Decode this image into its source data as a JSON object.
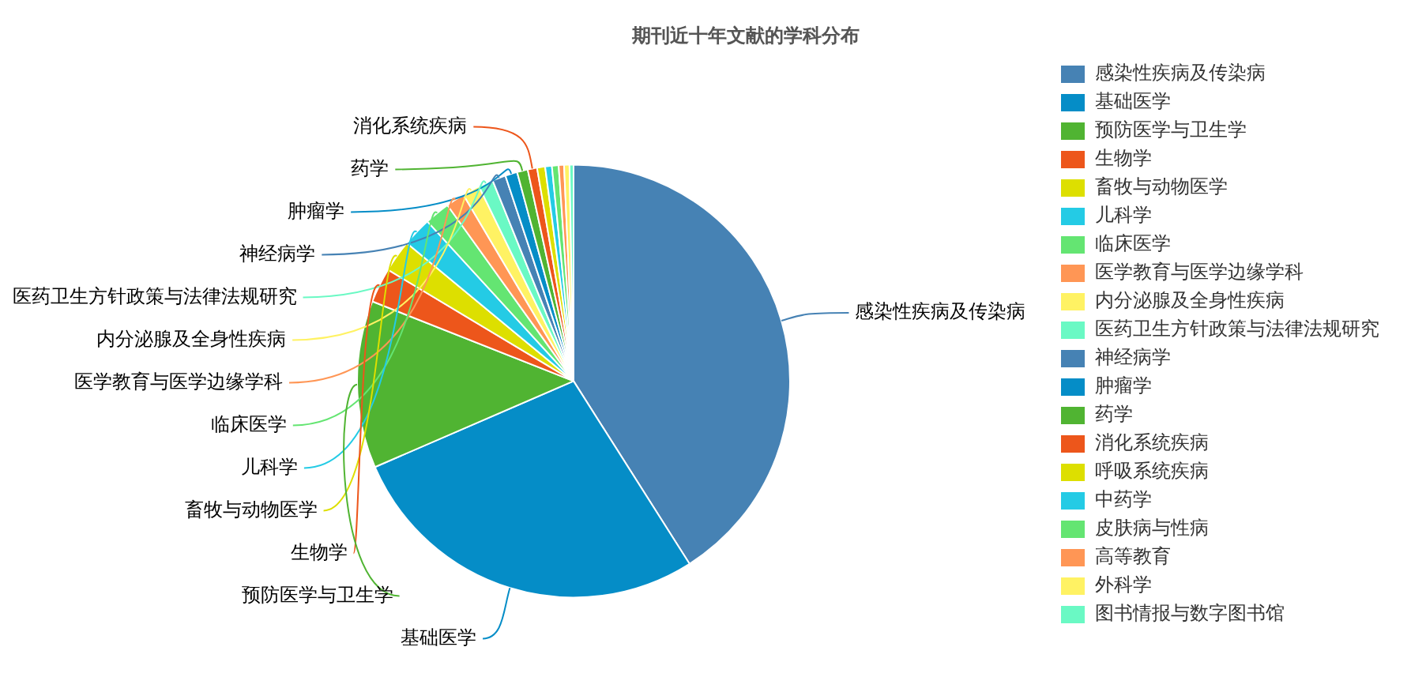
{
  "chart_data": {
    "type": "pie",
    "title": "期刊近十年文献的学科分布",
    "categories": [
      "感染性疾病及传染病",
      "基础医学",
      "预防医学与卫生学",
      "生物学",
      "畜牧与动物医学",
      "儿科学",
      "临床医学",
      "医学教育与医学边缘学科",
      "内分泌腺及全身性疾病",
      "医药卫生方针政策与法律法规研究",
      "神经病学",
      "肿瘤学",
      "药学",
      "消化系统疾病",
      "呼吸系统疾病",
      "中药学",
      "皮肤病与性病",
      "高等教育",
      "外科学",
      "图书情报与数字图书馆"
    ],
    "values": [
      41.0,
      27.5,
      12.5,
      2.6,
      2.4,
      2.2,
      1.9,
      1.4,
      1.3,
      1.1,
      1.0,
      0.9,
      0.8,
      0.7,
      0.6,
      0.5,
      0.5,
      0.4,
      0.4,
      0.3
    ],
    "colors": [
      "#4682b4",
      "#058dc7",
      "#50b432",
      "#ed561b",
      "#dddf00",
      "#24cbe5",
      "#64e572",
      "#ff9655",
      "#fff263",
      "#6af9c4",
      "#4682b4",
      "#058dc7",
      "#50b432",
      "#ed561b",
      "#dddf00",
      "#24cbe5",
      "#64e572",
      "#ff9655",
      "#fff263",
      "#6af9c4"
    ],
    "legend": "right"
  }
}
